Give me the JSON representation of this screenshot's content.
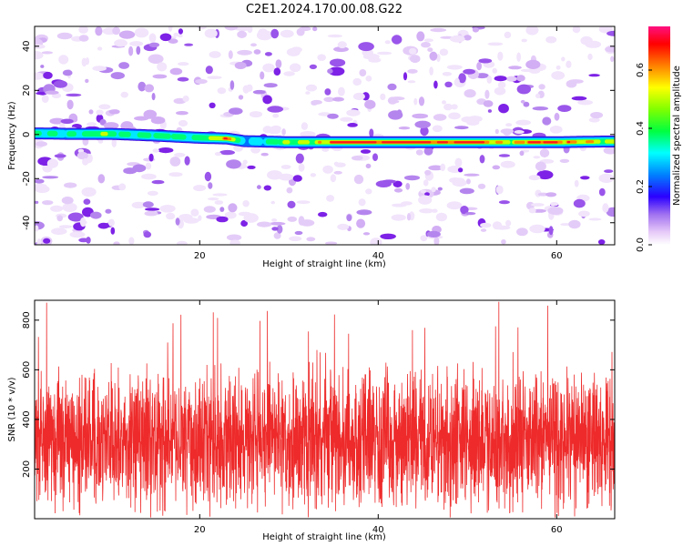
{
  "title": "C2E1.2024.170.00.08.G22",
  "colors": {
    "snr_line": "#ee2a2a",
    "colormap": [
      "#ffffff",
      "#e6c8f8",
      "#b58af0",
      "#8a2be2",
      "#2b00ff",
      "#0080ff",
      "#00ffff",
      "#00ff60",
      "#80ff00",
      "#ffff00",
      "#ff8000",
      "#ff0000",
      "#ff1080"
    ]
  },
  "chart_data": [
    {
      "type": "heatmap",
      "name": "spectrogram",
      "title": "",
      "xlabel": "Height of straight line (km)",
      "ylabel": "Frequency (Hz)",
      "xlim": [
        1.5,
        66.5
      ],
      "ylim": [
        -50,
        49
      ],
      "xticks": [
        20,
        40,
        60
      ],
      "yticks": [
        -40,
        -20,
        0,
        20,
        40
      ],
      "ridge": [
        {
          "x": 2.0,
          "y": 0.5,
          "amp": 0.3
        },
        {
          "x": 5.0,
          "y": 0.3,
          "amp": 0.35
        },
        {
          "x": 10.0,
          "y": 0.3,
          "amp": 0.4
        },
        {
          "x": 15.0,
          "y": -0.5,
          "amp": 0.35
        },
        {
          "x": 20.0,
          "y": -1.5,
          "amp": 0.4
        },
        {
          "x": 23.0,
          "y": -1.8,
          "amp": 0.55
        },
        {
          "x": 25.0,
          "y": -3.0,
          "amp": 0.25
        },
        {
          "x": 30.0,
          "y": -3.5,
          "amp": 0.4
        },
        {
          "x": 35.0,
          "y": -3.5,
          "amp": 0.65
        },
        {
          "x": 40.0,
          "y": -3.5,
          "amp": 0.72
        },
        {
          "x": 45.0,
          "y": -3.5,
          "amp": 0.7
        },
        {
          "x": 50.0,
          "y": -3.5,
          "amp": 0.68
        },
        {
          "x": 55.0,
          "y": -3.5,
          "amp": 0.55
        },
        {
          "x": 60.0,
          "y": -3.5,
          "amp": 0.7
        },
        {
          "x": 65.0,
          "y": -3.2,
          "amp": 0.45
        }
      ],
      "colorbar": {
        "label": "Normalized spectral amplitude",
        "range": [
          0.0,
          0.75
        ],
        "ticks": [
          0.0,
          0.2,
          0.4,
          0.6
        ]
      }
    },
    {
      "type": "line",
      "name": "snr",
      "title": "",
      "xlabel": "Height of straight line (km)",
      "ylabel": "SNR (10 * v/v)",
      "xlim": [
        1.5,
        66.5
      ],
      "ylim": [
        0,
        880
      ],
      "xticks": [
        20,
        40,
        60
      ],
      "yticks": [
        200,
        400,
        600,
        800
      ],
      "series": [
        {
          "values_summary": {
            "mean": 320,
            "typical_min": 60,
            "typical_max": 650,
            "peak": 880
          }
        }
      ]
    }
  ]
}
